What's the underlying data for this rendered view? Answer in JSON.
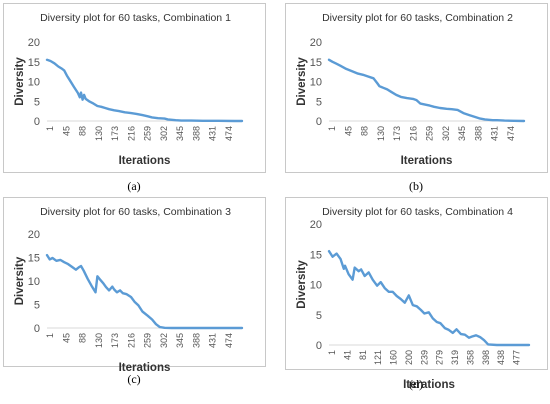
{
  "chart_data": [
    {
      "type": "line",
      "title": "Diversity plot for 60 tasks, Combination 1",
      "xlabel": "Iterations",
      "ylabel": "Diversity",
      "ylim": [
        0,
        20
      ],
      "yticks": [
        0,
        5,
        10,
        15,
        20
      ],
      "xlim": [
        1,
        500
      ],
      "xticks": [
        "1",
        "45",
        "88",
        "130",
        "173",
        "216",
        "259",
        "302",
        "345",
        "388",
        "431",
        "474"
      ],
      "series": [
        {
          "color": "#5b9bd5",
          "points": [
            [
              1,
              15.5
            ],
            [
              10,
              15.2
            ],
            [
              20,
              14.6
            ],
            [
              30,
              13.8
            ],
            [
              40,
              13.2
            ],
            [
              45,
              12.8
            ],
            [
              52,
              11.5
            ],
            [
              60,
              10.2
            ],
            [
              70,
              8.6
            ],
            [
              80,
              7.1
            ],
            [
              85,
              6.0
            ],
            [
              88,
              7.2
            ],
            [
              92,
              5.4
            ],
            [
              96,
              6.6
            ],
            [
              100,
              5.6
            ],
            [
              110,
              4.9
            ],
            [
              120,
              4.4
            ],
            [
              130,
              3.8
            ],
            [
              140,
              3.6
            ],
            [
              150,
              3.3
            ],
            [
              160,
              3.0
            ],
            [
              173,
              2.7
            ],
            [
              185,
              2.5
            ],
            [
              200,
              2.2
            ],
            [
              216,
              2.0
            ],
            [
              230,
              1.8
            ],
            [
              245,
              1.5
            ],
            [
              259,
              1.2
            ],
            [
              270,
              0.9
            ],
            [
              285,
              0.7
            ],
            [
              302,
              0.6
            ],
            [
              310,
              0.4
            ],
            [
              330,
              0.2
            ],
            [
              345,
              0.1
            ],
            [
              370,
              0.1
            ],
            [
              400,
              0.05
            ],
            [
              440,
              0.05
            ],
            [
              480,
              0.0
            ],
            [
              500,
              0.0
            ]
          ]
        }
      ],
      "caption": "(a)"
    },
    {
      "type": "line",
      "title": "Diversity plot for 60 tasks, Combination 2",
      "xlabel": "Iterations",
      "ylabel": "Diversity",
      "ylim": [
        0,
        20
      ],
      "yticks": [
        0,
        5,
        10,
        15,
        20
      ],
      "xlim": [
        1,
        500
      ],
      "xticks": [
        "1",
        "45",
        "88",
        "130",
        "173",
        "216",
        "259",
        "302",
        "345",
        "388",
        "431",
        "474"
      ],
      "series": [
        {
          "color": "#5b9bd5",
          "points": [
            [
              1,
              15.5
            ],
            [
              10,
              15.0
            ],
            [
              20,
              14.5
            ],
            [
              30,
              14.0
            ],
            [
              45,
              13.2
            ],
            [
              60,
              12.6
            ],
            [
              75,
              12.0
            ],
            [
              88,
              11.7
            ],
            [
              100,
              11.3
            ],
            [
              115,
              10.8
            ],
            [
              125,
              9.5
            ],
            [
              130,
              8.8
            ],
            [
              140,
              8.4
            ],
            [
              150,
              8.0
            ],
            [
              160,
              7.4
            ],
            [
              173,
              6.6
            ],
            [
              185,
              6.1
            ],
            [
              200,
              5.8
            ],
            [
              216,
              5.6
            ],
            [
              225,
              5.3
            ],
            [
              235,
              4.4
            ],
            [
              245,
              4.2
            ],
            [
              259,
              3.9
            ],
            [
              270,
              3.6
            ],
            [
              285,
              3.3
            ],
            [
              302,
              3.1
            ],
            [
              315,
              3.0
            ],
            [
              330,
              2.8
            ],
            [
              345,
              2.0
            ],
            [
              360,
              1.5
            ],
            [
              375,
              1.0
            ],
            [
              388,
              0.6
            ],
            [
              400,
              0.4
            ],
            [
              420,
              0.2
            ],
            [
              431,
              0.2
            ],
            [
              450,
              0.1
            ],
            [
              474,
              0.05
            ],
            [
              500,
              0.0
            ]
          ]
        }
      ],
      "caption": "(b)"
    },
    {
      "type": "line",
      "title": "Diversity plot for 60 tasks, Combination 3",
      "xlabel": "Iterations",
      "ylabel": "Diversity",
      "ylim": [
        0,
        20
      ],
      "yticks": [
        0,
        5,
        10,
        15,
        20
      ],
      "xlim": [
        1,
        500
      ],
      "xticks": [
        "1",
        "45",
        "88",
        "130",
        "173",
        "216",
        "259",
        "302",
        "345",
        "388",
        "431",
        "474"
      ],
      "series": [
        {
          "color": "#5b9bd5",
          "points": [
            [
              1,
              15.5
            ],
            [
              8,
              14.6
            ],
            [
              15,
              14.9
            ],
            [
              25,
              14.3
            ],
            [
              35,
              14.5
            ],
            [
              45,
              14.0
            ],
            [
              55,
              13.6
            ],
            [
              65,
              13.0
            ],
            [
              75,
              12.4
            ],
            [
              82,
              12.9
            ],
            [
              88,
              13.2
            ],
            [
              95,
              12.2
            ],
            [
              105,
              10.5
            ],
            [
              115,
              9.0
            ],
            [
              125,
              7.6
            ],
            [
              130,
              11.0
            ],
            [
              138,
              10.2
            ],
            [
              145,
              9.5
            ],
            [
              152,
              8.7
            ],
            [
              160,
              8.0
            ],
            [
              168,
              8.8
            ],
            [
              173,
              8.2
            ],
            [
              180,
              7.6
            ],
            [
              188,
              8.0
            ],
            [
              195,
              7.4
            ],
            [
              205,
              7.2
            ],
            [
              216,
              6.6
            ],
            [
              225,
              5.6
            ],
            [
              235,
              4.8
            ],
            [
              245,
              3.5
            ],
            [
              259,
              2.6
            ],
            [
              270,
              1.8
            ],
            [
              280,
              0.8
            ],
            [
              290,
              0.2
            ],
            [
              302,
              0.05
            ],
            [
              320,
              0.0
            ],
            [
              360,
              0.0
            ],
            [
              420,
              0.0
            ],
            [
              474,
              0.0
            ],
            [
              500,
              0.0
            ]
          ]
        }
      ],
      "caption": "(c)"
    },
    {
      "type": "line",
      "title": "Diversity plot for 60 tasks, Combination 4",
      "xlabel": "Iterations",
      "ylabel": "Diversity",
      "ylim": [
        0,
        20
      ],
      "yticks": [
        0,
        5,
        10,
        15,
        20
      ],
      "xlim": [
        1,
        500
      ],
      "xticks": [
        "1",
        "41",
        "81",
        "121",
        "160",
        "200",
        "239",
        "279",
        "319",
        "358",
        "398",
        "438",
        "477"
      ],
      "series": [
        {
          "color": "#5b9bd5",
          "points": [
            [
              1,
              15.5
            ],
            [
              10,
              14.6
            ],
            [
              20,
              15.1
            ],
            [
              30,
              14.2
            ],
            [
              38,
              12.6
            ],
            [
              41,
              13.1
            ],
            [
              50,
              11.7
            ],
            [
              60,
              10.8
            ],
            [
              65,
              12.8
            ],
            [
              75,
              12.2
            ],
            [
              81,
              12.5
            ],
            [
              90,
              11.4
            ],
            [
              100,
              12.0
            ],
            [
              110,
              10.8
            ],
            [
              121,
              9.8
            ],
            [
              130,
              10.4
            ],
            [
              140,
              9.4
            ],
            [
              150,
              8.8
            ],
            [
              160,
              8.8
            ],
            [
              170,
              8.1
            ],
            [
              180,
              7.6
            ],
            [
              190,
              7.0
            ],
            [
              200,
              8.2
            ],
            [
              210,
              6.6
            ],
            [
              220,
              6.4
            ],
            [
              230,
              5.8
            ],
            [
              239,
              5.2
            ],
            [
              250,
              5.4
            ],
            [
              260,
              4.4
            ],
            [
              270,
              3.8
            ],
            [
              279,
              3.6
            ],
            [
              290,
              2.8
            ],
            [
              300,
              2.5
            ],
            [
              310,
              2.0
            ],
            [
              319,
              2.6
            ],
            [
              330,
              1.8
            ],
            [
              340,
              1.7
            ],
            [
              350,
              1.2
            ],
            [
              358,
              1.4
            ],
            [
              368,
              1.6
            ],
            [
              378,
              1.3
            ],
            [
              388,
              0.8
            ],
            [
              398,
              0.1
            ],
            [
              420,
              0.0
            ],
            [
              438,
              0.0
            ],
            [
              477,
              0.0
            ],
            [
              500,
              0.0
            ]
          ]
        }
      ],
      "caption": "(d)"
    }
  ]
}
